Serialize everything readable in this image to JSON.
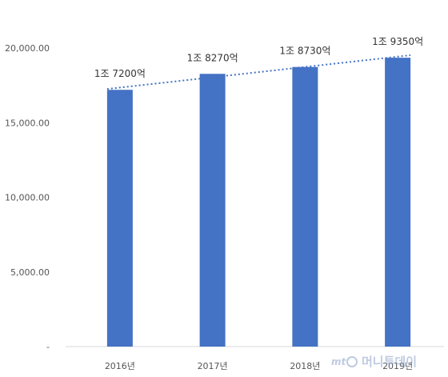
{
  "chart_data": {
    "type": "bar",
    "categories": [
      "2016년",
      "2017년",
      "2018년",
      "2019년"
    ],
    "values": [
      17200,
      18270,
      18730,
      19350
    ],
    "data_labels": [
      "1조 7200억",
      "1조 8270억",
      "1조 8730억",
      "1조 9350억"
    ],
    "title": "",
    "xlabel": "",
    "ylabel": "",
    "ylim": [
      0,
      20000
    ],
    "y_ticks": [
      0,
      5000,
      10000,
      15000,
      20000
    ],
    "y_tick_labels": [
      "-",
      "5,000.00",
      "10,000.00",
      "15,000.00",
      "20,000.00"
    ],
    "trendline": "linear, dotted",
    "grid": false,
    "legend": "none",
    "colors": {
      "bar": "#4472C4",
      "trendline": "#4472C4"
    }
  },
  "watermark": {
    "text": "머니투데이",
    "prefix": "mt"
  }
}
